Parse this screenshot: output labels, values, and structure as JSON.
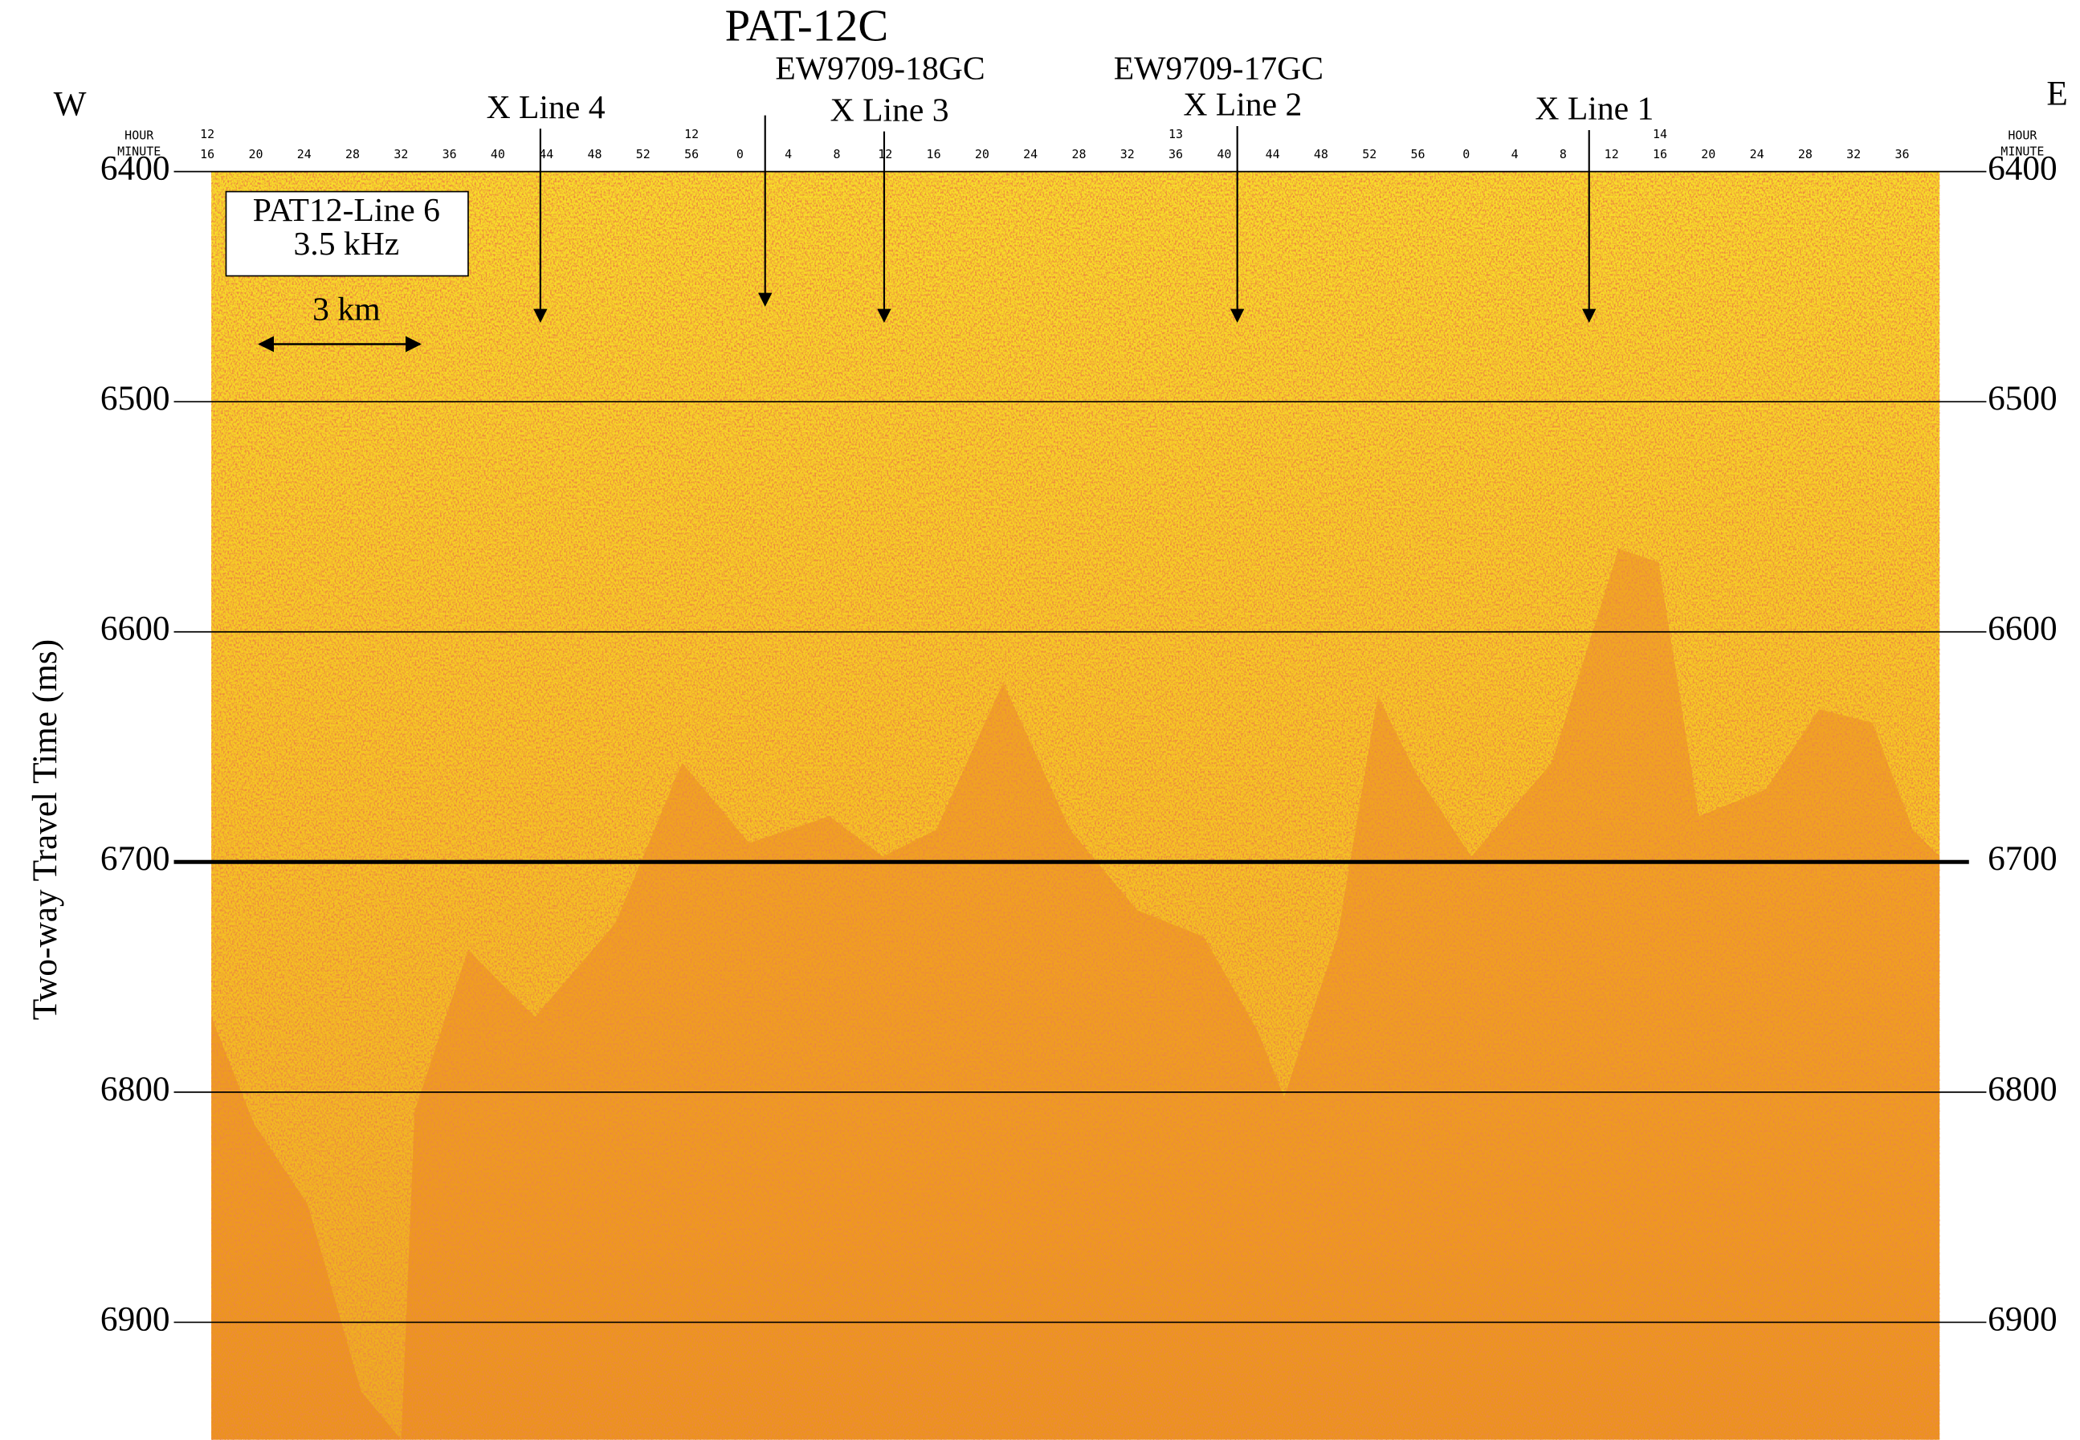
{
  "chart_data": {
    "type": "seismic-profile",
    "title": "PAT-12C",
    "y_label": "Two-way Travel Time (ms)",
    "ylim": [
      6400,
      6951
    ],
    "yticks": [
      6400,
      6500,
      6600,
      6700,
      6800,
      6900
    ],
    "left_label": "W",
    "right_label": "E",
    "time_axis": {
      "hour_label": "HOUR",
      "minute_label": "MINUTE",
      "hours": [
        "12",
        "12",
        "13",
        "14"
      ],
      "minutes": [
        "16",
        "20",
        "24",
        "28",
        "32",
        "36",
        "40",
        "44",
        "48",
        "52",
        "56",
        "0",
        "4",
        "8",
        "12",
        "16",
        "20",
        "24",
        "28",
        "32",
        "36",
        "40",
        "44",
        "48",
        "52",
        "56",
        "0",
        "4",
        "8",
        "12",
        "16",
        "20",
        "24",
        "28",
        "32",
        "36"
      ]
    },
    "annotations": {
      "cores": [
        "EW9709-18GC",
        "EW9709-17GC"
      ],
      "x_lines": [
        "X Line 4",
        "X Line 3",
        "X Line 2",
        "X Line 1"
      ],
      "legend_box": [
        "PAT12-Line 6",
        "3.5 kHz"
      ],
      "scale_bar": "3 km"
    }
  }
}
